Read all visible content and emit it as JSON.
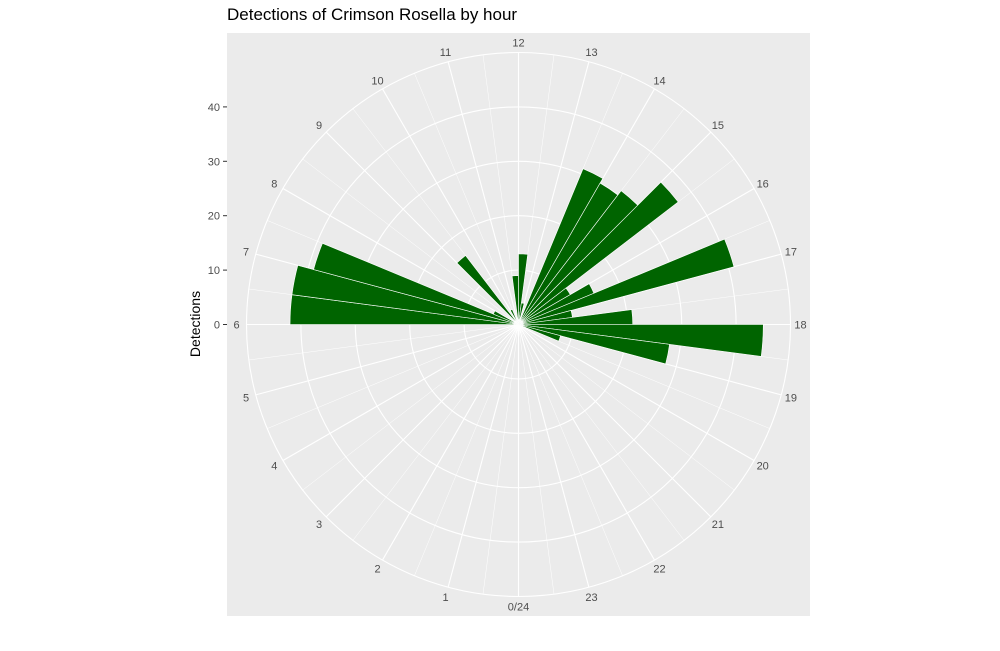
{
  "chart_data": {
    "type": "bar",
    "coord": "polar",
    "title": "Detections of Crimson Rosella by hour",
    "ylabel": "Detections",
    "xlabel": "",
    "ylim": [
      0,
      50
    ],
    "y_ticks": [
      0,
      10,
      20,
      30,
      40
    ],
    "bar_color": "#006400",
    "panel_color": "#ebebeb",
    "grid": true,
    "hour_labels": [
      "0/24",
      "1",
      "2",
      "3",
      "4",
      "5",
      "6",
      "7",
      "8",
      "9",
      "10",
      "11",
      "12",
      "13",
      "14",
      "15",
      "16",
      "17",
      "18",
      "19",
      "20",
      "21",
      "22",
      "23"
    ],
    "bins": [
      {
        "hour": 6.0,
        "value": 42
      },
      {
        "hour": 6.5,
        "value": 42
      },
      {
        "hour": 7.0,
        "value": 39
      },
      {
        "hour": 7.5,
        "value": 5
      },
      {
        "hour": 9.0,
        "value": 16
      },
      {
        "hour": 10.0,
        "value": 3
      },
      {
        "hour": 11.5,
        "value": 9
      },
      {
        "hour": 12.0,
        "value": 13
      },
      {
        "hour": 12.5,
        "value": 4
      },
      {
        "hour": 13.5,
        "value": 31
      },
      {
        "hour": 14.0,
        "value": 30
      },
      {
        "hour": 14.5,
        "value": 31
      },
      {
        "hour": 15.0,
        "value": 37
      },
      {
        "hour": 15.5,
        "value": 11
      },
      {
        "hour": 16.0,
        "value": 15
      },
      {
        "hour": 16.5,
        "value": 41
      },
      {
        "hour": 17.0,
        "value": 10
      },
      {
        "hour": 17.5,
        "value": 21
      },
      {
        "hour": 18.0,
        "value": 45
      },
      {
        "hour": 18.5,
        "value": 28
      },
      {
        "hour": 19.0,
        "value": 8
      }
    ]
  }
}
